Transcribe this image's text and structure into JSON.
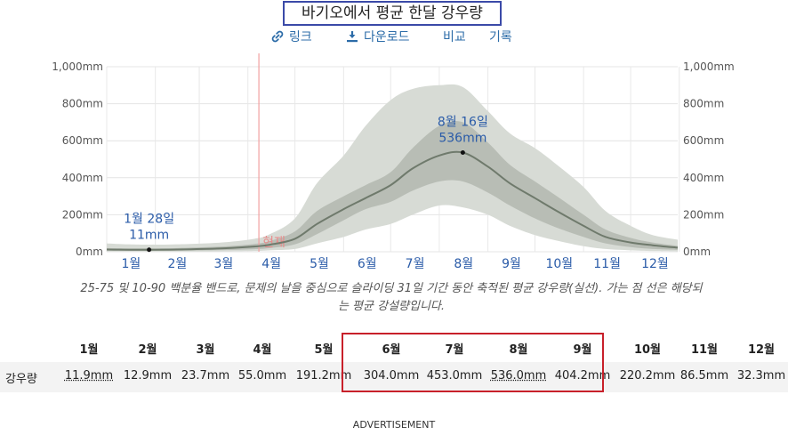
{
  "title": "바기오에서 평균 한달 강우량",
  "toolbar": {
    "link_label": "링크",
    "download_label": "다운로드",
    "compare_label": "비교",
    "history_label": "기록"
  },
  "colors": {
    "band_outer": "#d7dbd5",
    "band_inner": "#b8bdb5",
    "median_line": "#6f7a6c",
    "now_line": "#f2a0a0",
    "label_blue": "#2a5ba8",
    "highlight": "#c8202a",
    "title_border": "#3b4aa8"
  },
  "chart_data": {
    "type": "area",
    "title": "바기오에서 평균 한달 강우량",
    "xlabel": "",
    "ylabel": "",
    "ylim": [
      0,
      1000
    ],
    "yticks": [
      "0mm",
      "200mm",
      "400mm",
      "600mm",
      "800mm",
      "1,000mm"
    ],
    "ytick_values": [
      0,
      200,
      400,
      600,
      800,
      1000
    ],
    "months": [
      "1월",
      "2월",
      "3월",
      "4월",
      "5월",
      "6월",
      "7월",
      "8월",
      "9월",
      "10월",
      "11월",
      "12월"
    ],
    "grid": true,
    "day_of_year": [
      1,
      15,
      28,
      46,
      74,
      95,
      105,
      121,
      135,
      152,
      166,
      182,
      196,
      213,
      228,
      244,
      258,
      274,
      288,
      305,
      319,
      335,
      349,
      365
    ],
    "series": [
      {
        "name": "",
        "values": [
          12,
          11,
          11,
          12,
          18,
          28,
          38,
          70,
          150,
          230,
          290,
          360,
          450,
          520,
          536,
          460,
          370,
          290,
          220,
          140,
          80,
          50,
          35,
          22
        ]
      }
    ],
    "band_25_75": {
      "low": [
        6,
        5,
        5,
        6,
        9,
        14,
        20,
        40,
        95,
        170,
        230,
        270,
        330,
        380,
        380,
        320,
        250,
        180,
        130,
        80,
        45,
        25,
        15,
        10
      ],
      "high": [
        20,
        18,
        18,
        20,
        28,
        42,
        58,
        110,
        220,
        300,
        360,
        430,
        560,
        680,
        700,
        590,
        470,
        380,
        300,
        200,
        120,
        75,
        50,
        32
      ]
    },
    "band_10_90": {
      "low": [
        1,
        1,
        1,
        1,
        2,
        4,
        8,
        15,
        45,
        80,
        120,
        150,
        200,
        250,
        240,
        200,
        140,
        90,
        60,
        30,
        15,
        8,
        4,
        2
      ],
      "high": [
        45,
        40,
        38,
        40,
        50,
        70,
        95,
        180,
        370,
        520,
        680,
        820,
        880,
        900,
        890,
        760,
        640,
        560,
        470,
        350,
        220,
        140,
        90,
        65
      ]
    },
    "annotations": [
      {
        "date_label": "1월 28일",
        "value_label": "11mm",
        "day_of_year": 28,
        "value": 11
      },
      {
        "date_label": "8월 16일",
        "value_label": "536mm",
        "day_of_year": 228,
        "value": 536
      }
    ],
    "now_marker": {
      "label": "현재",
      "day_of_year": 98
    }
  },
  "caption": "25-75 및 10-90 백분율 밴드로, 문제의 날을 중심으로 슬라이딩 31일 기간 동안 축적된 평균 강우량(실선). 가는 점 선은 해당되는 평균 강설량입니다.",
  "table": {
    "row_label": "강우량",
    "months": [
      "1월",
      "2월",
      "3월",
      "4월",
      "5월",
      "6월",
      "7월",
      "8월",
      "9월",
      "10월",
      "11월",
      "12월"
    ],
    "values": [
      "11.9mm",
      "12.9mm",
      "23.7mm",
      "55.0mm",
      "191.2mm",
      "304.0mm",
      "453.0mm",
      "536.0mm",
      "404.2mm",
      "220.2mm",
      "86.5mm",
      "32.3mm"
    ]
  },
  "advertisement_label": "ADVERTISEMENT"
}
